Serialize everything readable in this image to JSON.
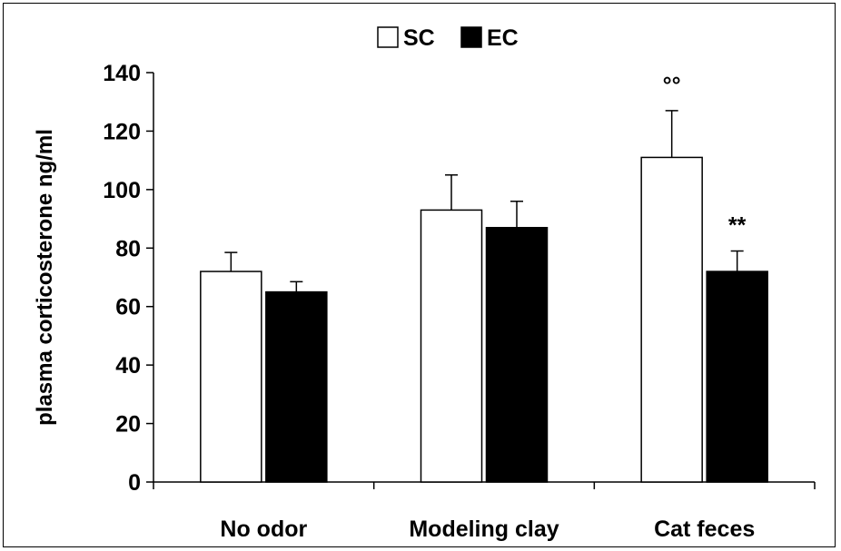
{
  "chart_data": {
    "type": "bar",
    "categories": [
      "No odor",
      "Modeling clay",
      "Cat feces"
    ],
    "series": [
      {
        "name": "SC",
        "values": [
          72,
          93,
          111
        ],
        "errors": [
          6.5,
          12,
          16
        ],
        "color": "#ffffff"
      },
      {
        "name": "EC",
        "values": [
          65,
          87,
          72
        ],
        "errors": [
          3.5,
          9,
          7
        ],
        "color": "#000000"
      }
    ],
    "ylabel": "plasma corticosterone ng/ml",
    "xlabel": "",
    "ylim": [
      0,
      140
    ],
    "yticks": [
      0,
      20,
      40,
      60,
      80,
      100,
      120,
      140
    ],
    "grid": false,
    "legend_position": "top-center",
    "annotations": [
      {
        "category": "Cat feces",
        "series": "SC",
        "text": "°°"
      },
      {
        "category": "Cat feces",
        "series": "EC",
        "text": "**"
      }
    ]
  }
}
